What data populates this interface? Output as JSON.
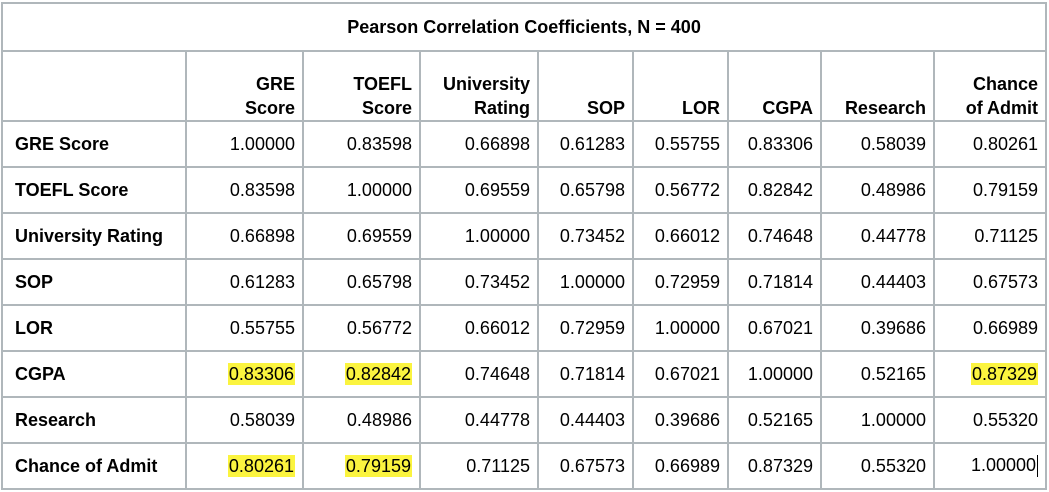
{
  "title": "Pearson Correlation Coefficients, N = 400",
  "columns": [
    [
      "GRE",
      "Score"
    ],
    [
      "TOEFL",
      "Score"
    ],
    [
      "University",
      "Rating"
    ],
    [
      "SOP"
    ],
    [
      "LOR"
    ],
    [
      "CGPA"
    ],
    [
      "Research"
    ],
    [
      "Chance",
      "of Admit"
    ]
  ],
  "rows": [
    {
      "label": "GRE Score",
      "values": [
        "1.00000",
        "0.83598",
        "0.66898",
        "0.61283",
        "0.55755",
        "0.83306",
        "0.58039",
        "0.80261"
      ]
    },
    {
      "label": "TOEFL Score",
      "values": [
        "0.83598",
        "1.00000",
        "0.69559",
        "0.65798",
        "0.56772",
        "0.82842",
        "0.48986",
        "0.79159"
      ]
    },
    {
      "label": "University Rating",
      "values": [
        "0.66898",
        "0.69559",
        "1.00000",
        "0.73452",
        "0.66012",
        "0.74648",
        "0.44778",
        "0.71125"
      ]
    },
    {
      "label": "SOP",
      "values": [
        "0.61283",
        "0.65798",
        "0.73452",
        "1.00000",
        "0.72959",
        "0.71814",
        "0.44403",
        "0.67573"
      ]
    },
    {
      "label": "LOR",
      "values": [
        "0.55755",
        "0.56772",
        "0.66012",
        "0.72959",
        "1.00000",
        "0.67021",
        "0.39686",
        "0.66989"
      ]
    },
    {
      "label": "CGPA",
      "values": [
        "0.83306",
        "0.82842",
        "0.74648",
        "0.71814",
        "0.67021",
        "1.00000",
        "0.52165",
        "0.87329"
      ]
    },
    {
      "label": "Research",
      "values": [
        "0.58039",
        "0.48986",
        "0.44778",
        "0.44403",
        "0.39686",
        "0.52165",
        "1.00000",
        "0.55320"
      ]
    },
    {
      "label": "Chance of Admit",
      "values": [
        "0.80261",
        "0.79159",
        "0.71125",
        "0.67573",
        "0.66989",
        "0.87329",
        "0.55320",
        "1.00000"
      ]
    }
  ],
  "highlighted_cells": [
    {
      "row": 5,
      "col": 0
    },
    {
      "row": 5,
      "col": 1
    },
    {
      "row": 5,
      "col": 7
    },
    {
      "row": 7,
      "col": 0
    },
    {
      "row": 7,
      "col": 1
    }
  ],
  "highlight_color": "#fbf43f",
  "border_color": "#b0b7bb",
  "text_cursor": {
    "row": 7,
    "col": 7
  }
}
